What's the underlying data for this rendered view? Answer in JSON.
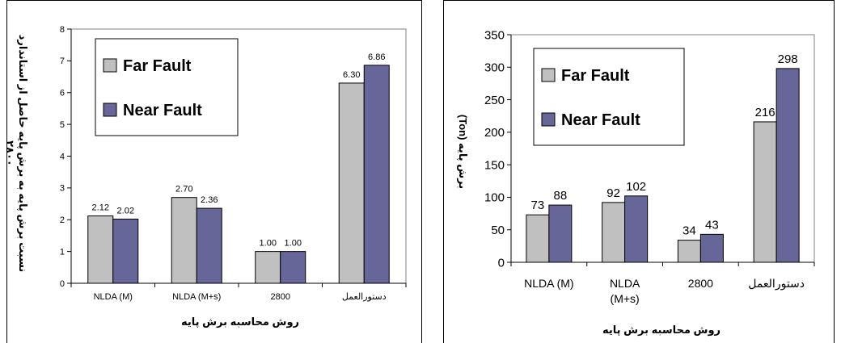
{
  "colors": {
    "far": "#c0c0c0",
    "near": "#666699",
    "axis": "#000000",
    "gridline": "#808080",
    "plot_bg": "#ffffff"
  },
  "chart_data": [
    {
      "type": "bar",
      "categories": [
        "NLDA (M)",
        "NLDA (M+s)",
        "2800",
        "دستورالعمل"
      ],
      "series": [
        {
          "name": "Far Fault",
          "values": [
            2.12,
            2.7,
            1.0,
            6.3
          ],
          "labels": [
            "2.12",
            "2.70",
            "1.00",
            "6.30"
          ]
        },
        {
          "name": "Near Fault",
          "values": [
            2.02,
            2.36,
            1.0,
            6.86
          ],
          "labels": [
            "2.02",
            "2.36",
            "1.00",
            "6.86"
          ]
        }
      ],
      "xlabel": "روش محاسبه برش پایه",
      "ylabel_lines": [
        "نسبت برش پایه به برش پایه حاصل از استاندارد",
        "۲۸۰۰"
      ],
      "ylim": [
        0,
        8
      ],
      "ytick_labels": [
        "0",
        "1",
        "2",
        "3",
        "4",
        "5",
        "6",
        "7",
        "8"
      ],
      "grid": false,
      "legend": "top-left"
    },
    {
      "type": "bar",
      "categories": [
        "NLDA (M)",
        "NLDA (M+s)",
        "2800",
        "دستورالعمل"
      ],
      "series": [
        {
          "name": "Far Fault",
          "values": [
            73,
            92,
            34,
            216
          ],
          "labels": [
            "73",
            "92",
            "34",
            "216"
          ]
        },
        {
          "name": "Near Fault",
          "values": [
            88,
            102,
            43,
            298
          ],
          "labels": [
            "88",
            "102",
            "43",
            "298"
          ]
        }
      ],
      "xlabel": "روش محاسبه برش پایه",
      "ylabel": "برش پایه (Ton)",
      "ylim": [
        0,
        350
      ],
      "ytick_labels": [
        "0",
        "50",
        "100",
        "150",
        "200",
        "250",
        "300",
        "350"
      ],
      "grid": false,
      "legend": "top-left"
    }
  ]
}
